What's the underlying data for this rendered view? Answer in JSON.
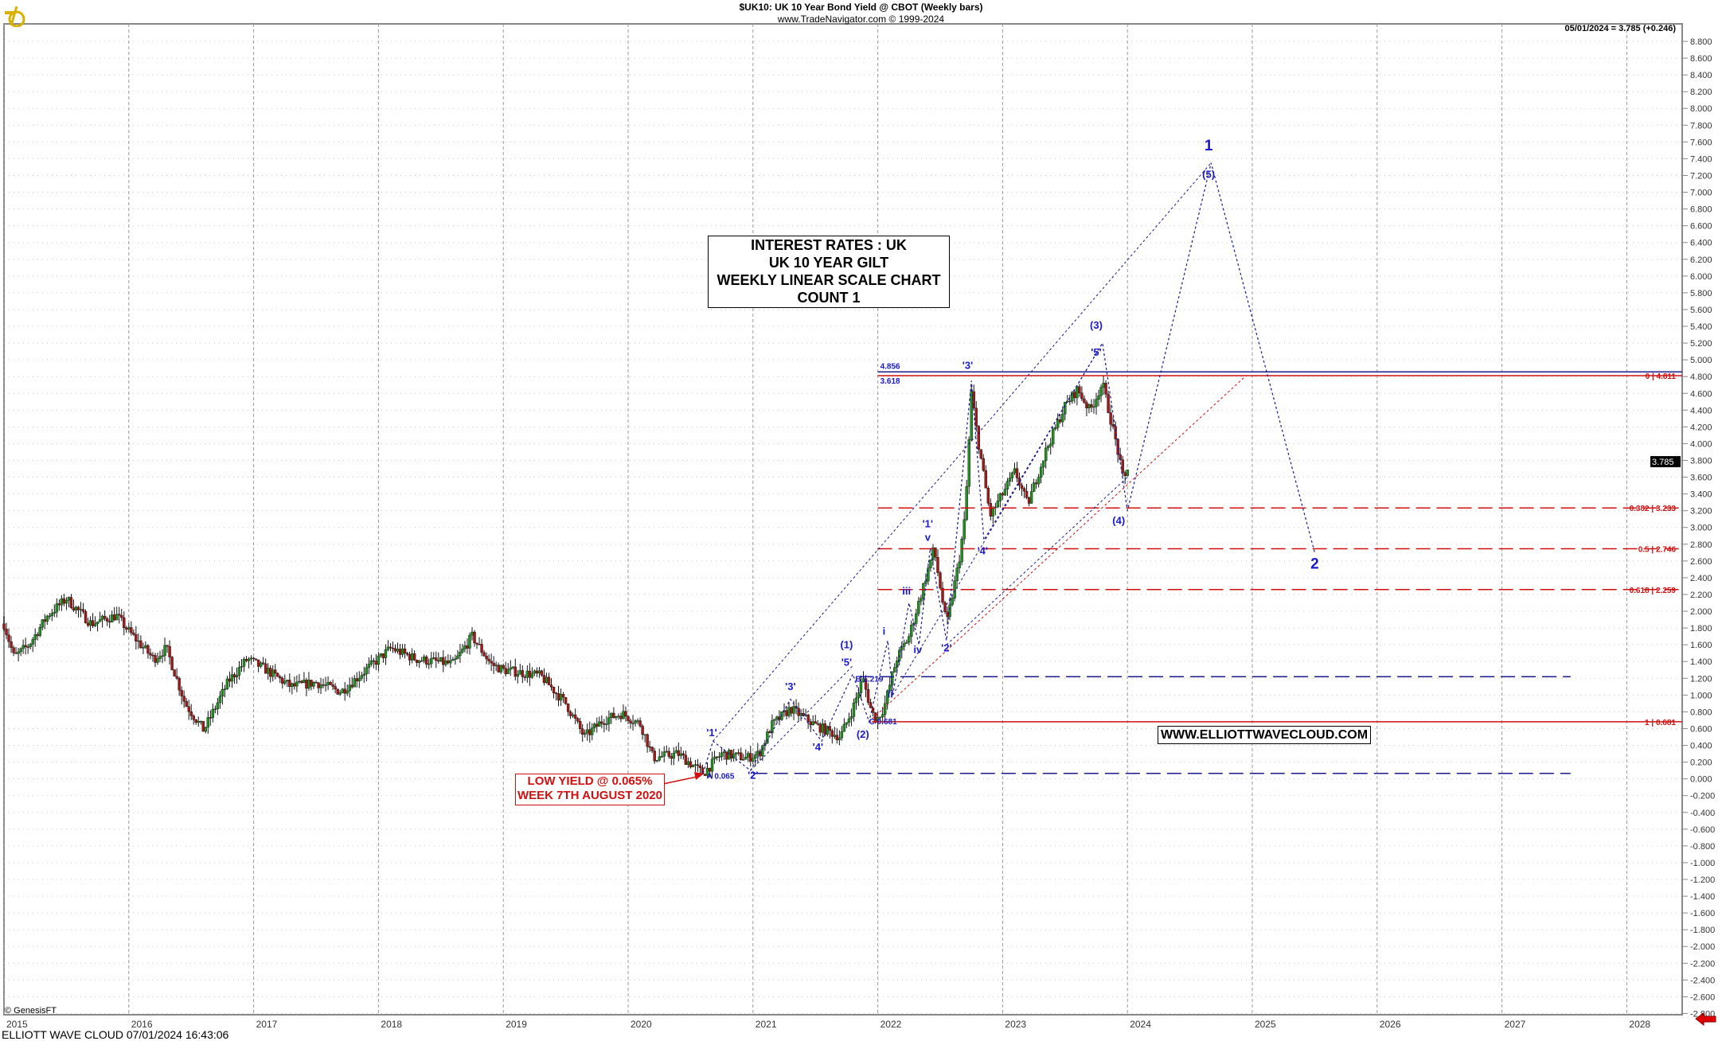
{
  "header": {
    "title": "$UK10:  UK 10 Year Bond Yield @ CBOT  (Weekly bars)",
    "subtitle": "www.TradeNavigator.com © 1999-2024",
    "last_quote": "05/01/2024 = 3.785 (+0.246)"
  },
  "footer": {
    "left": "ELLIOTT WAVE CLOUD   07/01/2024 16:43:06",
    "copyright": "© GenesisFT"
  },
  "info_box": [
    "INTEREST RATES : UK",
    "UK 10 YEAR GILT",
    "WEEKLY LINEAR SCALE CHART",
    "COUNT 1"
  ],
  "website_box": "WWW.ELLIOTTWAVECLOUD.COM",
  "low_box": [
    "LOW YIELD @ 0.065%",
    "WEEK 7TH AUGUST 2020"
  ],
  "colors": {
    "up": "#1f8f1f",
    "down": "#a01818",
    "wave_label": "#1a1acc",
    "fib": "#d01010",
    "level_blue": "#1a1a8c"
  },
  "chart_data": {
    "type": "candlestick",
    "xlabel": "",
    "ylabel": "",
    "xlim": [
      2015.0,
      2028.4
    ],
    "ylim": [
      -2.8,
      8.8
    ],
    "ytick_step": 0.2,
    "grid": true,
    "xticks": [
      "2015",
      "2016",
      "2017",
      "2018",
      "2019",
      "2020",
      "2021",
      "2022",
      "2023",
      "2024",
      "2025",
      "2026",
      "2027",
      "2028"
    ],
    "last_value": "3.785",
    "price_path": [
      [
        2015.0,
        1.85
      ],
      [
        2015.08,
        1.45
      ],
      [
        2015.2,
        1.6
      ],
      [
        2015.35,
        1.95
      ],
      [
        2015.5,
        2.15
      ],
      [
        2015.7,
        1.85
      ],
      [
        2015.9,
        1.95
      ],
      [
        2016.0,
        1.76
      ],
      [
        2016.2,
        1.43
      ],
      [
        2016.3,
        1.56
      ],
      [
        2016.45,
        0.9
      ],
      [
        2016.6,
        0.58
      ],
      [
        2016.8,
        1.17
      ],
      [
        2016.95,
        1.43
      ],
      [
        2017.1,
        1.3
      ],
      [
        2017.3,
        1.1
      ],
      [
        2017.5,
        1.15
      ],
      [
        2017.7,
        1.04
      ],
      [
        2017.9,
        1.3
      ],
      [
        2018.1,
        1.56
      ],
      [
        2018.3,
        1.43
      ],
      [
        2018.6,
        1.37
      ],
      [
        2018.75,
        1.7
      ],
      [
        2018.9,
        1.37
      ],
      [
        2019.0,
        1.3
      ],
      [
        2019.3,
        1.23
      ],
      [
        2019.5,
        0.9
      ],
      [
        2019.65,
        0.5
      ],
      [
        2019.8,
        0.7
      ],
      [
        2019.95,
        0.78
      ],
      [
        2020.1,
        0.65
      ],
      [
        2020.2,
        0.25
      ],
      [
        2020.4,
        0.3
      ],
      [
        2020.6,
        0.065
      ],
      [
        2020.75,
        0.3
      ],
      [
        2020.95,
        0.25
      ],
      [
        2021.05,
        0.3
      ],
      [
        2021.15,
        0.64
      ],
      [
        2021.3,
        0.84
      ],
      [
        2021.5,
        0.64
      ],
      [
        2021.7,
        0.5
      ],
      [
        2021.8,
        0.84
      ],
      [
        2021.88,
        1.2
      ],
      [
        2021.95,
        0.8
      ],
      [
        2021.99,
        0.7
      ],
      [
        2022.05,
        0.85
      ],
      [
        2022.15,
        1.43
      ],
      [
        2022.25,
        1.7
      ],
      [
        2022.35,
        2.22
      ],
      [
        2022.45,
        2.75
      ],
      [
        2022.55,
        1.83
      ],
      [
        2022.65,
        2.6
      ],
      [
        2022.7,
        3.14
      ],
      [
        2022.75,
        4.6
      ],
      [
        2022.8,
        4.06
      ],
      [
        2022.9,
        3.14
      ],
      [
        2023.0,
        3.4
      ],
      [
        2023.1,
        3.67
      ],
      [
        2023.2,
        3.27
      ],
      [
        2023.35,
        3.93
      ],
      [
        2023.5,
        4.45
      ],
      [
        2023.6,
        4.65
      ],
      [
        2023.7,
        4.39
      ],
      [
        2023.8,
        4.72
      ],
      [
        2023.85,
        4.39
      ],
      [
        2023.92,
        3.93
      ],
      [
        2023.97,
        3.53
      ],
      [
        2024.01,
        3.785
      ]
    ],
    "levels": [
      {
        "value": 4.856,
        "from": 2022.0,
        "label_left": "4.856",
        "label_right": "",
        "color": "#1a1a8c",
        "style": "solid"
      },
      {
        "value": 4.811,
        "from": 2022.0,
        "label_left": "3.618",
        "label_right": "0 | 4.811",
        "color": "#d01010",
        "style": "solid"
      },
      {
        "value": 3.233,
        "from": 2022.0,
        "label_left": "",
        "label_right": "0.382 | 3.233",
        "color": "#d01010",
        "style": "dashed"
      },
      {
        "value": 2.746,
        "from": 2022.0,
        "label_left": "",
        "label_right": "0.5 | 2.746",
        "color": "#d01010",
        "style": "dashed"
      },
      {
        "value": 2.259,
        "from": 2022.0,
        "label_left": "",
        "label_right": "0.618 | 2.259",
        "color": "#d01010",
        "style": "dashed"
      },
      {
        "value": 1.219,
        "from": 2021.85,
        "to": 2027.55,
        "label_left": "",
        "label_right": "",
        "color": "#1a1a8c",
        "style": "dashed"
      },
      {
        "value": 0.681,
        "from": 2021.95,
        "label_left": "",
        "label_right": "1 | 0.681",
        "color": "#d01010",
        "style": "solid"
      },
      {
        "value": 0.065,
        "from": 2021.0,
        "to": 2027.55,
        "label_left": "",
        "label_right": "",
        "color": "#1a1a8c",
        "style": "dashed"
      }
    ],
    "wave_labels": [
      {
        "text": "'1'",
        "x": 2020.67,
        "y": 0.51
      },
      {
        "text": "'2'",
        "x": 2021.0,
        "y": 0.0
      },
      {
        "text": "'3'",
        "x": 2021.3,
        "y": 1.06
      },
      {
        "text": "'4'",
        "x": 2021.52,
        "y": 0.34
      },
      {
        "text": "'5'",
        "x": 2021.75,
        "y": 1.35
      },
      {
        "text": "(1)",
        "x": 2021.75,
        "y": 1.56
      },
      {
        "text": "(2)",
        "x": 2021.88,
        "y": 0.49
      },
      {
        "text": "i",
        "x": 2022.05,
        "y": 1.72
      },
      {
        "text": "ii",
        "x": 2022.1,
        "y": 0.97
      },
      {
        "text": "iii",
        "x": 2022.23,
        "y": 2.2
      },
      {
        "text": "iv",
        "x": 2022.32,
        "y": 1.5
      },
      {
        "text": "v",
        "x": 2022.4,
        "y": 2.84
      },
      {
        "text": "'1'",
        "x": 2022.4,
        "y": 2.97
      },
      {
        "text": "'2'",
        "x": 2022.55,
        "y": 1.52
      },
      {
        "text": "'3'",
        "x": 2022.72,
        "y": 4.89
      },
      {
        "text": "'4'",
        "x": 2022.84,
        "y": 2.68
      },
      {
        "text": "'5'",
        "x": 2023.75,
        "y": 5.05
      },
      {
        "text": "(3)",
        "x": 2023.75,
        "y": 5.37
      },
      {
        "text": "(4)",
        "x": 2023.93,
        "y": 3.04
      },
      {
        "text": "(5)",
        "x": 2024.65,
        "y": 7.17
      },
      {
        "text": "1",
        "x": 2024.65,
        "y": 7.5
      },
      {
        "text": "2",
        "x": 2025.5,
        "y": 2.51
      }
    ],
    "price_notes": [
      {
        "text": "A 0.065",
        "x": 2020.63,
        "y": 0.0
      },
      {
        "text": "B 1.219",
        "x": 2021.82,
        "y": 1.16
      },
      {
        "text": "C 0.681",
        "x": 2021.93,
        "y": 0.6
      }
    ],
    "wave_path": [
      [
        2020.6,
        0.065
      ],
      [
        2020.68,
        0.45
      ],
      [
        2020.98,
        0.1
      ],
      [
        2021.3,
        0.95
      ],
      [
        2021.55,
        0.45
      ],
      [
        2021.8,
        1.25
      ],
      [
        2021.93,
        0.681
      ],
      [
        2022.08,
        1.65
      ],
      [
        2022.12,
        1.0
      ],
      [
        2022.25,
        2.1
      ],
      [
        2022.33,
        1.6
      ],
      [
        2022.42,
        2.75
      ],
      [
        2022.55,
        1.65
      ],
      [
        2022.75,
        4.75
      ],
      [
        2022.85,
        2.85
      ],
      [
        2023.8,
        5.2
      ],
      [
        2024.0,
        3.2
      ],
      [
        2024.67,
        7.35
      ],
      [
        2025.5,
        2.7
      ]
    ],
    "channel_lines": [
      {
        "from": [
          2020.68,
          0.45
        ],
        "to": [
          2024.67,
          7.35
        ],
        "color": "#1a1a8c"
      },
      {
        "from": [
          2021.93,
          0.681
        ],
        "to": [
          2024.95,
          4.811
        ],
        "color": "#d01010"
      },
      {
        "from": [
          2020.98,
          0.1
        ],
        "to": [
          2021.8,
          1.35
        ],
        "color": "#1a1a8c"
      },
      {
        "from": [
          2022.12,
          1.0
        ],
        "to": [
          2023.8,
          5.2
        ],
        "color": "#1a1a8c"
      },
      {
        "from": [
          2022.55,
          1.6
        ],
        "to": [
          2024.0,
          3.6
        ],
        "color": "#1a1a8c"
      }
    ]
  }
}
